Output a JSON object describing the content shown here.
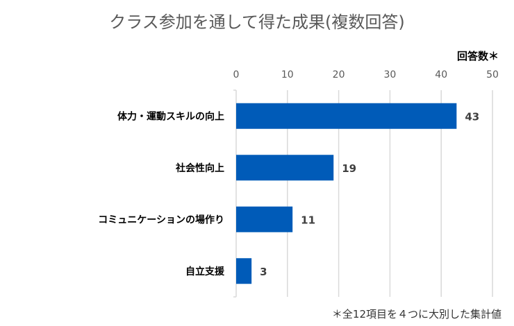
{
  "chart_data": {
    "type": "bar",
    "orientation": "horizontal",
    "title": "クラス参加を通して得た成果(複数回答)",
    "xlabel": "回答数＊",
    "ylabel": "",
    "categories": [
      "体力・運動スキルの向上",
      "社会性向上",
      "コミュニケーションの場作り",
      "自立支援"
    ],
    "values": [
      43,
      19,
      11,
      3
    ],
    "xlim": [
      0,
      50
    ],
    "ticks": [
      "0",
      "10",
      "20",
      "30",
      "40",
      "50"
    ],
    "tick_values": [
      0,
      10,
      20,
      30,
      40,
      50
    ],
    "data_labels": [
      "43",
      "19",
      "11",
      "3"
    ],
    "grid": true,
    "axis_position": "top",
    "bar_color": "#005BB8",
    "note": "＊全12項目を４つに大別した集計値"
  }
}
